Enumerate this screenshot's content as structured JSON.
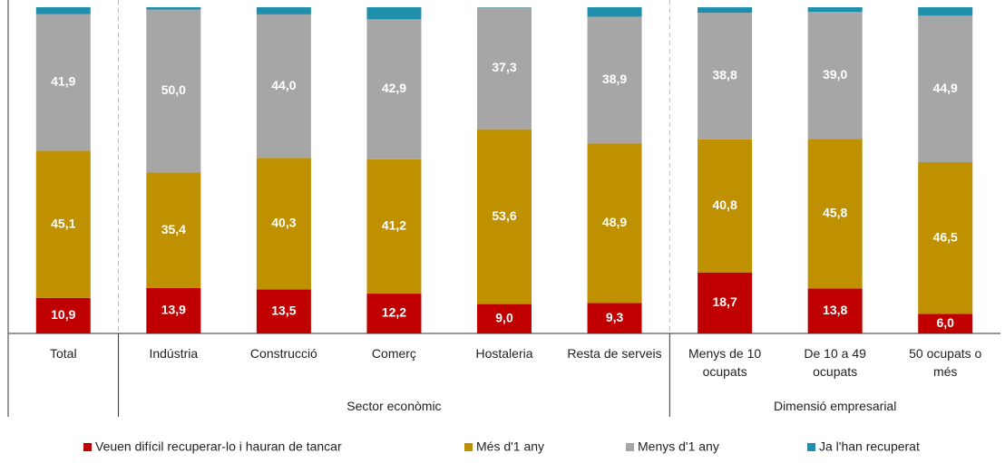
{
  "chart_data": {
    "type": "stacked_bar",
    "categories": [
      "Total",
      "Indústria",
      "Construcció",
      "Comerç",
      "Hostaleria",
      "Resta de serveis",
      "Menys de 10 ocupats",
      "De 10 a 49 ocupats",
      "50 ocupats o més"
    ],
    "groups": [
      {
        "label": null,
        "count": 1
      },
      {
        "label": "Sector econòmic",
        "count": 5
      },
      {
        "label": "Dimensió empresarial",
        "count": 3
      }
    ],
    "ylim": [
      0,
      100
    ],
    "series": [
      {
        "name": "Veuen difícil recuperar-lo i hauran de tancar",
        "color": "#c00000",
        "values": [
          10.9,
          13.9,
          13.5,
          12.2,
          9.0,
          9.3,
          18.7,
          13.8,
          6.0
        ],
        "value_labels": [
          "10,9",
          "13,9",
          "13,5",
          "12,2",
          "9,0",
          "9,3",
          "18,7",
          "13,8",
          "6,0"
        ]
      },
      {
        "name": "Més d'1 any",
        "color": "#bf9000",
        "values": [
          45.1,
          35.4,
          40.3,
          41.2,
          53.6,
          48.9,
          40.8,
          45.8,
          46.5
        ],
        "value_labels": [
          "45,1",
          "35,4",
          "40,3",
          "41,2",
          "53,6",
          "48,9",
          "40,8",
          "45,8",
          "46,5"
        ]
      },
      {
        "name": "Menys d'1 any",
        "color": "#a6a6a6",
        "values": [
          41.9,
          50.0,
          44.0,
          42.9,
          37.3,
          38.9,
          38.8,
          39.0,
          44.9
        ],
        "value_labels": [
          "41,9",
          "50,0",
          "44,0",
          "42,9",
          "37,3",
          "38,9",
          "38,8",
          "39,0",
          "44,9"
        ]
      },
      {
        "name": "Ja l'han recuperat",
        "color": "#1f8fab",
        "values": [
          2.1,
          0.7,
          2.2,
          3.7,
          0.1,
          2.9,
          1.7,
          1.4,
          2.6
        ]
      }
    ],
    "legend": "bottom"
  }
}
